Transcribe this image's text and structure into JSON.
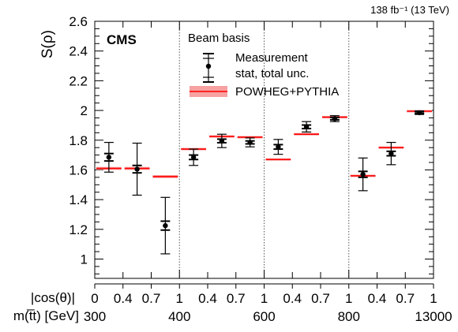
{
  "lumi_label": "138 fb⁻¹ (13 TeV)",
  "experiment_label": "CMS",
  "legend": {
    "header": "Beam basis",
    "measurement": "Measurement",
    "measurement_note": "stat, total unc.",
    "prediction": "POWHEG+PYTHIA"
  },
  "x_axis": {
    "row1_label": "|cos(θ)|",
    "row1_ticks": [
      "0",
      "0.4",
      "0.7",
      "1",
      "0.4",
      "0.7",
      "1",
      "0.4",
      "0.7",
      "1",
      "0.4",
      "0.7",
      "1"
    ],
    "row2_label": "m(t̅t) [GeV]",
    "row2_ticks": [
      "300",
      "400",
      "600",
      "800",
      "13000"
    ]
  },
  "colors": {
    "prediction": "#ff0000",
    "prediction_band": "#f7a1a1",
    "measurement": "#000000",
    "separator": "#555555"
  },
  "chart_data": {
    "type": "scatter",
    "title": "",
    "ylabel": "S(ρ)",
    "ylim": [
      0.87,
      2.6
    ],
    "yticks": [
      1,
      1.2,
      1.4,
      1.6,
      1.8,
      2,
      2.2,
      2.4,
      2.6
    ],
    "bins": 12,
    "mass_bins": [
      "300–400",
      "400–600",
      "600–800",
      "800–13000"
    ],
    "cos_bins": [
      "0–0.4",
      "0.4–0.7",
      "0.7–1"
    ],
    "series": [
      {
        "name": "Measurement",
        "values": [
          1.685,
          1.605,
          1.225,
          1.685,
          1.795,
          1.785,
          1.755,
          1.89,
          1.945,
          1.57,
          1.71,
          1.985
        ],
        "stat_unc": [
          0.025,
          0.025,
          0.03,
          0.015,
          0.012,
          0.01,
          0.015,
          0.012,
          0.008,
          0.02,
          0.015,
          0.006
        ],
        "total_unc": [
          0.1,
          0.175,
          0.19,
          0.055,
          0.045,
          0.03,
          0.05,
          0.035,
          0.02,
          0.11,
          0.075,
          0.012
        ]
      },
      {
        "name": "POWHEG+PYTHIA",
        "values": [
          1.61,
          1.61,
          1.555,
          1.74,
          1.825,
          1.82,
          1.67,
          1.84,
          1.955,
          1.56,
          1.75,
          1.995
        ],
        "band_unc": [
          0.01,
          0.01,
          0.01,
          0.008,
          0.008,
          0.008,
          0.008,
          0.008,
          0.008,
          0.008,
          0.008,
          0.008
        ]
      }
    ]
  }
}
